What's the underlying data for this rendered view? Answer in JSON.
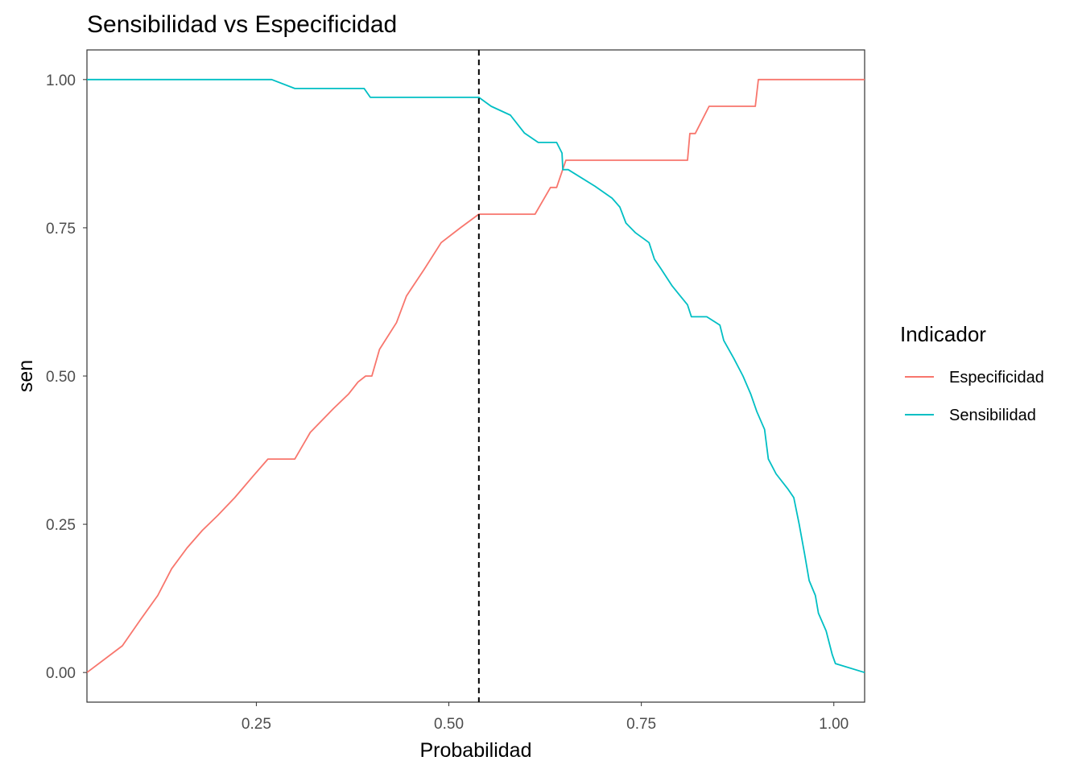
{
  "chart_data": {
    "type": "line",
    "title": "Sensibilidad vs Especificidad",
    "xlabel": "Probabilidad",
    "ylabel": "sen",
    "xlim": [
      0.03,
      1.04
    ],
    "ylim": [
      -0.05,
      1.05
    ],
    "x_ticks": [
      {
        "value": 0.25,
        "label": "0.25"
      },
      {
        "value": 0.5,
        "label": "0.50"
      },
      {
        "value": 0.75,
        "label": "0.75"
      },
      {
        "value": 1.0,
        "label": "1.00"
      }
    ],
    "y_ticks": [
      {
        "value": 0.0,
        "label": "0.00"
      },
      {
        "value": 0.25,
        "label": "0.25"
      },
      {
        "value": 0.5,
        "label": "0.50"
      },
      {
        "value": 0.75,
        "label": "0.75"
      },
      {
        "value": 1.0,
        "label": "1.00"
      }
    ],
    "grid": false,
    "legend": {
      "title": "Indicador",
      "position": "right"
    },
    "vline": {
      "x": 0.539,
      "style": "dashed",
      "color": "#000000"
    },
    "series": [
      {
        "name": "Especificidad",
        "color": "#F8766D",
        "points": [
          [
            0.03,
            0.0
          ],
          [
            0.076,
            0.045
          ],
          [
            0.1,
            0.09
          ],
          [
            0.122,
            0.13
          ],
          [
            0.14,
            0.175
          ],
          [
            0.16,
            0.21
          ],
          [
            0.18,
            0.24
          ],
          [
            0.2,
            0.265
          ],
          [
            0.222,
            0.295
          ],
          [
            0.245,
            0.33
          ],
          [
            0.265,
            0.36
          ],
          [
            0.3,
            0.36
          ],
          [
            0.32,
            0.405
          ],
          [
            0.35,
            0.445
          ],
          [
            0.37,
            0.47
          ],
          [
            0.382,
            0.49
          ],
          [
            0.392,
            0.5
          ],
          [
            0.4,
            0.5
          ],
          [
            0.41,
            0.545
          ],
          [
            0.432,
            0.59
          ],
          [
            0.445,
            0.635
          ],
          [
            0.468,
            0.68
          ],
          [
            0.49,
            0.725
          ],
          [
            0.515,
            0.75
          ],
          [
            0.539,
            0.773
          ],
          [
            0.612,
            0.773
          ],
          [
            0.632,
            0.818
          ],
          [
            0.64,
            0.818
          ],
          [
            0.652,
            0.864
          ],
          [
            0.81,
            0.864
          ],
          [
            0.813,
            0.909
          ],
          [
            0.82,
            0.909
          ],
          [
            0.838,
            0.955
          ],
          [
            0.898,
            0.955
          ],
          [
            0.902,
            1.0
          ],
          [
            1.04,
            1.0
          ]
        ]
      },
      {
        "name": "Sensibilidad",
        "color": "#00BFC4",
        "points": [
          [
            0.03,
            1.0
          ],
          [
            0.27,
            1.0
          ],
          [
            0.3,
            0.985
          ],
          [
            0.39,
            0.985
          ],
          [
            0.398,
            0.97
          ],
          [
            0.539,
            0.97
          ],
          [
            0.555,
            0.955
          ],
          [
            0.58,
            0.94
          ],
          [
            0.598,
            0.91
          ],
          [
            0.616,
            0.894
          ],
          [
            0.64,
            0.894
          ],
          [
            0.647,
            0.876
          ],
          [
            0.648,
            0.848
          ],
          [
            0.655,
            0.848
          ],
          [
            0.69,
            0.82
          ],
          [
            0.712,
            0.8
          ],
          [
            0.722,
            0.785
          ],
          [
            0.73,
            0.758
          ],
          [
            0.742,
            0.742
          ],
          [
            0.76,
            0.725
          ],
          [
            0.767,
            0.697
          ],
          [
            0.775,
            0.682
          ],
          [
            0.79,
            0.652
          ],
          [
            0.8,
            0.636
          ],
          [
            0.81,
            0.62
          ],
          [
            0.815,
            0.6
          ],
          [
            0.835,
            0.6
          ],
          [
            0.852,
            0.586
          ],
          [
            0.857,
            0.56
          ],
          [
            0.87,
            0.53
          ],
          [
            0.882,
            0.5
          ],
          [
            0.892,
            0.47
          ],
          [
            0.9,
            0.44
          ],
          [
            0.91,
            0.41
          ],
          [
            0.915,
            0.36
          ],
          [
            0.925,
            0.335
          ],
          [
            0.94,
            0.31
          ],
          [
            0.948,
            0.295
          ],
          [
            0.955,
            0.25
          ],
          [
            0.962,
            0.2
          ],
          [
            0.968,
            0.155
          ],
          [
            0.976,
            0.13
          ],
          [
            0.98,
            0.1
          ],
          [
            0.99,
            0.07
          ],
          [
            0.998,
            0.03
          ],
          [
            1.002,
            0.015
          ],
          [
            1.04,
            0.0
          ]
        ]
      }
    ]
  }
}
